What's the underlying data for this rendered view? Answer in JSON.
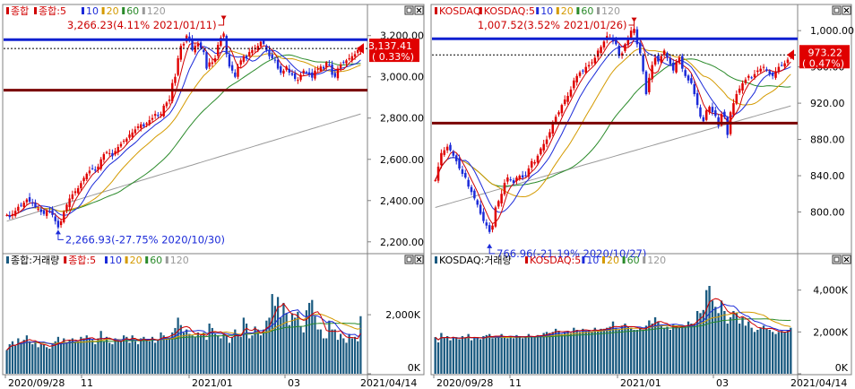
{
  "panels": [
    {
      "price": {
        "legend": [
          {
            "text": "종합",
            "color": "#d00000"
          },
          {
            "text": "종합:5",
            "color": "#d00000"
          },
          {
            "text": "10",
            "color": "#1c2bd9"
          },
          {
            "text": "20",
            "color": "#d49a00"
          },
          {
            "text": "60",
            "color": "#2a8a2a"
          },
          {
            "text": "120",
            "color": "#9a9a9a"
          }
        ],
        "yticks": [
          "3,200.00",
          "3,000.00",
          "2,800.00",
          "2,600.00",
          "2,400.00",
          "2,200.00"
        ],
        "current_price": "3,137.41",
        "current_change": "( 0.33%)",
        "high_label": "3,266.23(4.11% 2021/01/11)",
        "low_label": "2,266.93(-27.75% 2020/10/30)"
      },
      "volume": {
        "legend": [
          {
            "text": "종합:거래량",
            "color": "#000000"
          },
          {
            "text": "종합:5",
            "color": "#d00000"
          },
          {
            "text": "10",
            "color": "#1c2bd9"
          },
          {
            "text": "20",
            "color": "#d49a00"
          },
          {
            "text": "60",
            "color": "#2a8a2a"
          },
          {
            "text": "120",
            "color": "#9a9a9a"
          }
        ],
        "yticks": [
          "2,000K",
          "0K"
        ]
      },
      "xaxis": {
        "labels": [
          "2020/09/28",
          "11",
          "2021/01",
          "03"
        ],
        "end_label": "2021/04/14"
      }
    },
    {
      "price": {
        "legend": [
          {
            "text": "KOSDAQ",
            "color": "#d00000"
          },
          {
            "text": "KOSDAQ:5",
            "color": "#d00000"
          },
          {
            "text": "10",
            "color": "#1c2bd9"
          },
          {
            "text": "20",
            "color": "#d49a00"
          },
          {
            "text": "60",
            "color": "#2a8a2a"
          },
          {
            "text": "120",
            "color": "#9a9a9a"
          }
        ],
        "yticks": [
          "1,000.00",
          "960.00",
          "920.00",
          "880.00",
          "840.00",
          "800.00"
        ],
        "current_price": "973.22",
        "current_change": "( 0.47%)",
        "high_label": "1,007.52(3.52% 2021/01/26)",
        "low_label": "766.96(-21.19% 2020/10/27)"
      },
      "volume": {
        "legend": [
          {
            "text": "KOSDAQ:거래량",
            "color": "#000000"
          },
          {
            "text": "KOSDAQ:5",
            "color": "#d00000"
          },
          {
            "text": "10",
            "color": "#1c2bd9"
          },
          {
            "text": "20",
            "color": "#d49a00"
          },
          {
            "text": "60",
            "color": "#2a8a2a"
          },
          {
            "text": "120",
            "color": "#9a9a9a"
          }
        ],
        "yticks": [
          "4,000K",
          "2,000K",
          "0K"
        ]
      },
      "xaxis": {
        "labels": [
          "2020/09/28",
          "11",
          "2021/01",
          "03"
        ],
        "end_label": "2021/04/14"
      }
    }
  ],
  "colors": {
    "up": "#e00000",
    "down": "#1c2bd9",
    "resistance": "#1020d0",
    "support": "#7a0000",
    "volume_bar": "#1a5a80",
    "tag": "#e00000"
  },
  "chart_data": [
    {
      "type": "candlestick",
      "name": "종합",
      "date_range": [
        "2020/09/28",
        "2021/04/14"
      ],
      "ylim": [
        2160,
        3290
      ],
      "high": {
        "value": 3266.23,
        "date": "2021/01/11",
        "change_pct": 4.11
      },
      "low": {
        "value": 2266.93,
        "date": "2020/10/30",
        "change_pct": -27.75
      },
      "last": {
        "value": 3137.41,
        "change_pct": 0.33
      },
      "horizontal_lines": [
        3180,
        2935
      ],
      "close_series": [
        2330,
        2320,
        2335,
        2350,
        2370,
        2375,
        2390,
        2405,
        2395,
        2385,
        2370,
        2360,
        2345,
        2335,
        2350,
        2345,
        2330,
        2300,
        2270,
        2300,
        2345,
        2380,
        2410,
        2430,
        2445,
        2460,
        2485,
        2510,
        2530,
        2545,
        2555,
        2545,
        2565,
        2600,
        2625,
        2635,
        2630,
        2615,
        2640,
        2660,
        2675,
        2690,
        2700,
        2720,
        2730,
        2745,
        2760,
        2770,
        2760,
        2775,
        2790,
        2800,
        2820,
        2810,
        2820,
        2860,
        2875,
        2890,
        2970,
        3000,
        3090,
        3150,
        3160,
        3200,
        3180,
        3130,
        3150,
        3160,
        3140,
        3120,
        3040,
        3070,
        3070,
        3090,
        3155,
        3190,
        3210,
        3110,
        3050,
        3030,
        3000,
        3050,
        3080,
        3100,
        3090,
        3120,
        3130,
        3140,
        3150,
        3170,
        3160,
        3130,
        3100,
        3090,
        3080,
        3040,
        3020,
        3030,
        3050,
        3020,
        3010,
        2990,
        2985,
        3010,
        3030,
        3020,
        3010,
        2996,
        3030,
        3040,
        3050,
        3040,
        3070,
        3060,
        3010,
        3000,
        3040,
        3060,
        3070,
        3080,
        3090,
        3100,
        3110,
        3130,
        3137.41
      ]
    },
    {
      "type": "volume",
      "name": "종합:거래량",
      "unit": "K",
      "ylim": [
        0,
        3400
      ],
      "values": [
        800,
        1000,
        1100,
        950,
        1200,
        1050,
        1150,
        1300,
        1100,
        1000,
        1050,
        900,
        1000,
        1000,
        900,
        850,
        1000,
        1100,
        1250,
        1050,
        1200,
        1050,
        1150,
        1200,
        1100,
        1100,
        1250,
        1200,
        1300,
        1200,
        1150,
        1000,
        1200,
        1450,
        1100,
        1250,
        1050,
        1000,
        1200,
        1100,
        1100,
        1300,
        1250,
        1050,
        1300,
        1100,
        1000,
        1200,
        1250,
        1150,
        1100,
        1250,
        1050,
        1150,
        1400,
        1300,
        1250,
        1200,
        1400,
        1550,
        1900,
        1650,
        1400,
        1500,
        1350,
        1300,
        1250,
        1400,
        1300,
        1400,
        1150,
        1700,
        1550,
        1350,
        1300,
        1200,
        1350,
        1300,
        1050,
        1250,
        1500,
        1350,
        1250,
        1900,
        1700,
        1200,
        1300,
        1600,
        1500,
        1300,
        1500,
        1800,
        1900,
        2700,
        2300,
        2600,
        1900,
        2400,
        2050,
        1650,
        2050,
        1900,
        2100,
        1600,
        1400,
        2150,
        2400,
        2500,
        1950,
        1500,
        1500,
        1200,
        1200,
        1800,
        1500,
        1500,
        1150,
        1350,
        1200,
        1050,
        1350,
        1200,
        1250,
        1100,
        1950
      ]
    },
    {
      "type": "candlestick",
      "name": "KOSDAQ",
      "date_range": [
        "2020/09/28",
        "2021/04/14"
      ],
      "ylim": [
        758,
        1015
      ],
      "high": {
        "value": 1007.52,
        "date": "2021/01/26",
        "change_pct": 3.52
      },
      "low": {
        "value": 766.96,
        "date": "2020/10/27",
        "change_pct": -21.19
      },
      "last": {
        "value": 973.22,
        "change_pct": 0.47
      },
      "horizontal_lines": [
        991,
        898
      ],
      "close_series": [
        835,
        850,
        865,
        868,
        872,
        868,
        862,
        856,
        848,
        842,
        838,
        828,
        822,
        815,
        808,
        798,
        790,
        785,
        778,
        785,
        805,
        812,
        820,
        832,
        838,
        835,
        832,
        838,
        840,
        838,
        840,
        848,
        856,
        855,
        862,
        870,
        875,
        880,
        888,
        898,
        905,
        910,
        918,
        924,
        928,
        935,
        945,
        950,
        954,
        955,
        960,
        962,
        965,
        970,
        978,
        982,
        988,
        994,
        992,
        988,
        985,
        972,
        975,
        985,
        990,
        1000,
        1002,
        985,
        975,
        955,
        930,
        948,
        962,
        970,
        966,
        972,
        978,
        970,
        963,
        956,
        965,
        970,
        958,
        950,
        945,
        942,
        930,
        918,
        905,
        900,
        912,
        916,
        910,
        906,
        895,
        908,
        905,
        885,
        910,
        920,
        930,
        936,
        942,
        946,
        950,
        948,
        952,
        956,
        958,
        960,
        956,
        952,
        950,
        955,
        960,
        962,
        964,
        968,
        973.22
      ]
    },
    {
      "type": "volume",
      "name": "KOSDAQ:거래량",
      "unit": "K",
      "ylim": [
        0,
        4800
      ],
      "values": [
        1750,
        1500,
        1950,
        1700,
        1800,
        1600,
        1700,
        1750,
        1650,
        1800,
        1700,
        1900,
        1600,
        1700,
        1750,
        1650,
        1800,
        1850,
        1900,
        1700,
        1750,
        1800,
        1900,
        1750,
        1700,
        1800,
        1700,
        1850,
        1800,
        1700,
        1750,
        1900,
        1800,
        1750,
        1850,
        1800,
        1950,
        2000,
        1950,
        2000,
        2150,
        2050,
        1900,
        2000,
        2050,
        1950,
        2200,
        2100,
        2000,
        2150,
        2050,
        2100,
        2000,
        2200,
        2050,
        2150,
        2150,
        2200,
        2250,
        2500,
        2200,
        2100,
        2300,
        2400,
        2250,
        2200,
        2100,
        2100,
        2200,
        2100,
        2300,
        2550,
        2400,
        2700,
        2500,
        2350,
        2200,
        2250,
        2100,
        2350,
        2300,
        2200,
        2300,
        2250,
        2500,
        2400,
        2400,
        3000,
        2900,
        3050,
        4000,
        4200,
        3500,
        3200,
        2900,
        3500,
        3000,
        2400,
        2700,
        3000,
        2900,
        2400,
        2700,
        2300,
        2500,
        2200,
        2000,
        2100,
        2200,
        2300,
        2150,
        2100,
        2000,
        1900,
        2000,
        2050,
        2000,
        2100,
        2200
      ]
    }
  ]
}
